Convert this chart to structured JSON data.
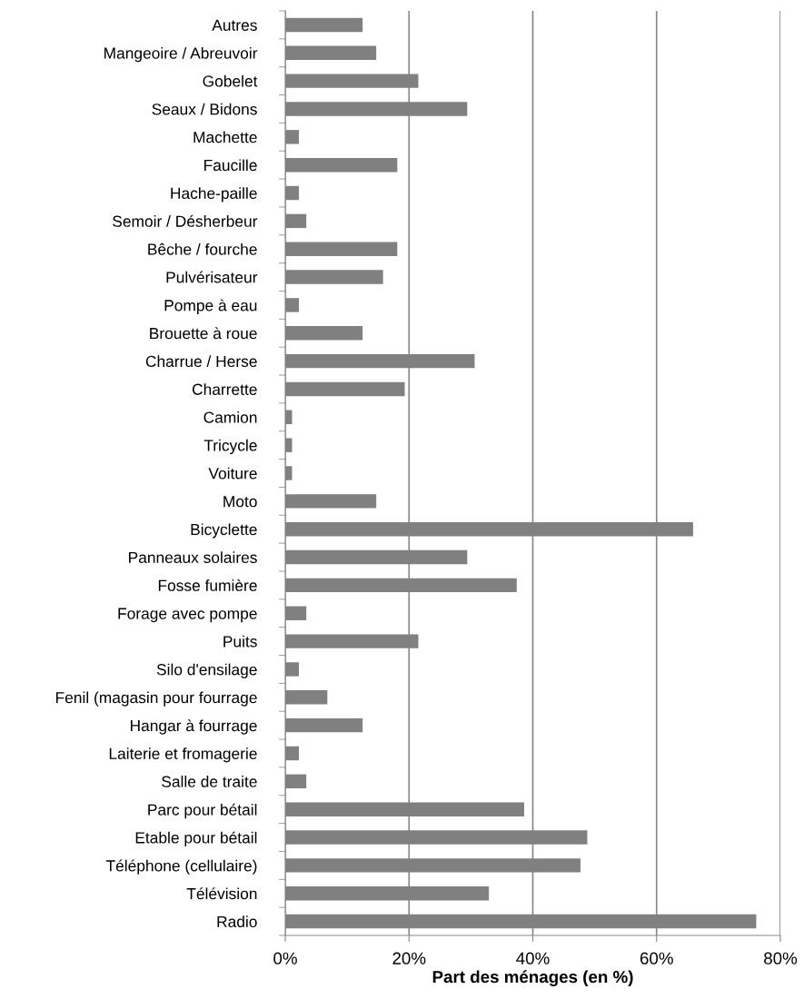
{
  "chart_data": {
    "type": "bar",
    "orientation": "horizontal",
    "xlabel": "Part des ménages (en %)",
    "categories": [
      "Autres",
      "Mangeoire / Abreuvoir",
      "Gobelet",
      "Seaux / Bidons",
      "Machette",
      "Faucille",
      "Hache-paille",
      "Semoir / Désherbeur",
      "Bêche / fourche",
      "Pulvérisateur",
      "Pompe à eau",
      "Brouette à roue",
      "Charrue / Herse",
      "Charrette",
      "Camion",
      "Tricycle",
      "Voiture",
      "Moto",
      "Bicyclette",
      "Panneaux solaires",
      "Fosse fumière",
      "Forage avec pompe",
      "Puits",
      "Silo d'ensilage",
      "Fenil (magasin pour fourrage",
      "Hangar à fourrage",
      "Laiterie et fromagerie",
      "Salle de traite",
      "Parc pour bétail",
      "Etable pour bétail",
      "Téléphone (cellulaire)",
      "Télévision",
      "Radio"
    ],
    "values": [
      12.5,
      14.7,
      21.5,
      29.4,
      2.2,
      18.1,
      2.2,
      3.4,
      18.1,
      15.8,
      2.2,
      12.5,
      30.6,
      19.3,
      1.1,
      1.1,
      1.1,
      14.7,
      65.9,
      29.4,
      37.4,
      3.4,
      21.5,
      2.2,
      6.8,
      12.5,
      2.2,
      3.4,
      38.6,
      48.8,
      47.7,
      32.9,
      76.1
    ],
    "color": "#808080",
    "xlim": [
      0,
      80
    ],
    "xticks": [
      {
        "value": 0,
        "label": "0%"
      },
      {
        "value": 20,
        "label": "20%"
      },
      {
        "value": 40,
        "label": "40%"
      },
      {
        "value": 60,
        "label": "60%"
      },
      {
        "value": 80,
        "label": "80%"
      }
    ],
    "grid": "x",
    "legend": false
  }
}
